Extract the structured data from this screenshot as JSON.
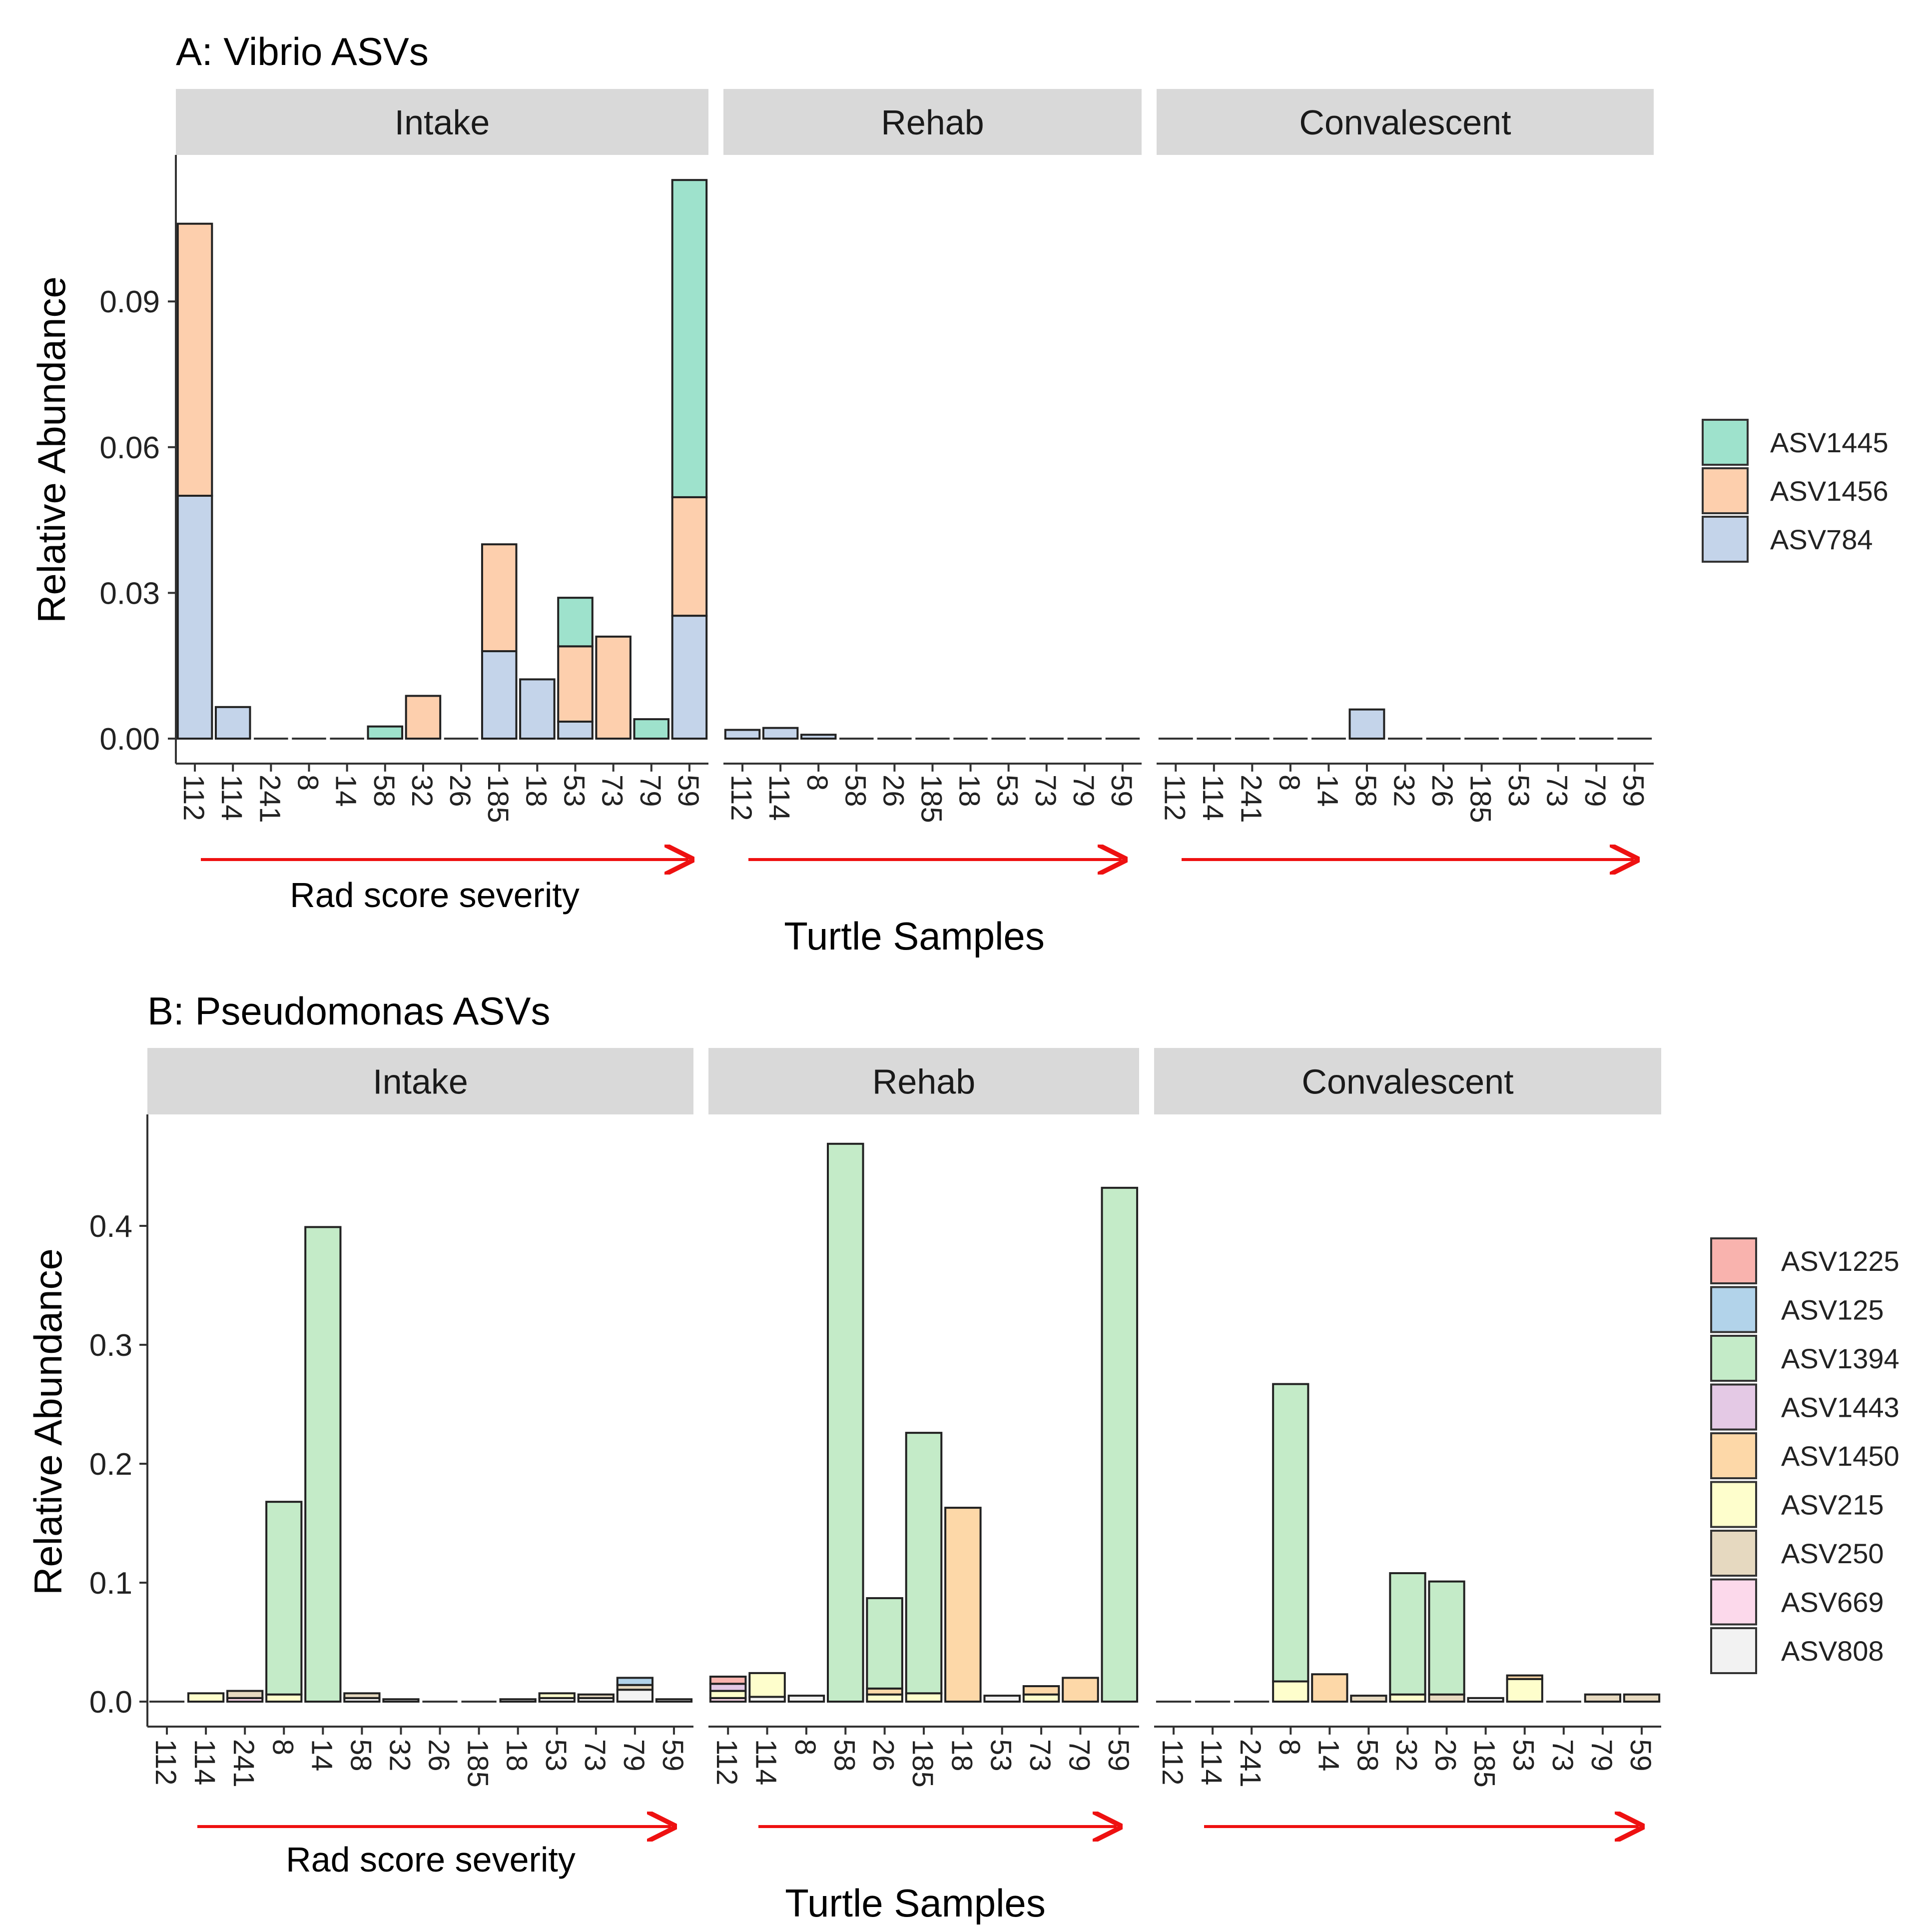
{
  "colors": {
    "ASV1445": "#9ee2cc",
    "ASV1456": "#fdcfad",
    "ASV784": "#c4d4ea",
    "ASV1225": "#f9b3ae",
    "ASV125": "#b2d3ea",
    "ASV1394": "#c4ebc8",
    "ASV1443": "#e4c9e5",
    "ASV1450": "#fdd8a8",
    "ASV215": "#fefecc",
    "ASV250": "#e6d9c0",
    "ASV669": "#fcd9eb",
    "ASV808": "#f2f2f2",
    "arrow": "#ee1111",
    "strip": "#d9d9d9"
  },
  "chart_data": [
    {
      "type": "bar",
      "stacked": true,
      "title": "A: Vibrio ASVs",
      "xlabel": "Turtle Samples",
      "ylabel": "Relative Abundance",
      "annotation": "Rad score severity",
      "ylim": [
        0,
        0.12
      ],
      "yticks": [
        0.0,
        0.03,
        0.06,
        0.09
      ],
      "ytick_labels": [
        "0.00",
        "0.03",
        "0.06",
        "0.09"
      ],
      "legend": [
        "ASV1445",
        "ASV1456",
        "ASV784"
      ],
      "facets": [
        {
          "name": "Intake",
          "categories": [
            "112",
            "114",
            "241",
            "8",
            "14",
            "58",
            "32",
            "26",
            "185",
            "18",
            "53",
            "73",
            "79",
            "59"
          ],
          "bars": [
            {
              "ASV784": 0.05,
              "ASV1456": 0.056
            },
            {
              "ASV784": 0.0065
            },
            {},
            {},
            {},
            {
              "ASV1445": 0.0025
            },
            {
              "ASV1456": 0.0088
            },
            {},
            {
              "ASV784": 0.018,
              "ASV1456": 0.022
            },
            {
              "ASV784": 0.0122
            },
            {
              "ASV784": 0.0035,
              "ASV1456": 0.0155,
              "ASV1445": 0.01
            },
            {
              "ASV1456": 0.021
            },
            {
              "ASV1445": 0.004
            },
            {
              "ASV784": 0.0253,
              "ASV1456": 0.0244,
              "ASV1445": 0.0653
            }
          ]
        },
        {
          "name": "Rehab",
          "categories": [
            "112",
            "114",
            "8",
            "58",
            "26",
            "185",
            "18",
            "53",
            "73",
            "79",
            "59"
          ],
          "bars": [
            {
              "ASV784": 0.0018
            },
            {
              "ASV784": 0.0022
            },
            {
              "ASV784": 0.0008
            },
            {},
            {},
            {},
            {},
            {},
            {},
            {},
            {}
          ]
        },
        {
          "name": "Convalescent",
          "categories": [
            "112",
            "114",
            "241",
            "8",
            "14",
            "58",
            "32",
            "26",
            "185",
            "53",
            "73",
            "79",
            "59"
          ],
          "bars": [
            {},
            {},
            {},
            {},
            {},
            {
              "ASV784": 0.006
            },
            {},
            {},
            {},
            {},
            {},
            {},
            {}
          ]
        }
      ]
    },
    {
      "type": "bar",
      "stacked": true,
      "title": "B: Pseudomonas ASVs",
      "xlabel": "Turtle Samples",
      "ylabel": "Relative Abundance",
      "annotation": "Rad score severity",
      "ylim": [
        0,
        0.49
      ],
      "yticks": [
        0.0,
        0.1,
        0.2,
        0.3,
        0.4
      ],
      "ytick_labels": [
        "0.0",
        "0.1",
        "0.2",
        "0.3",
        "0.4"
      ],
      "legend": [
        "ASV1225",
        "ASV125",
        "ASV1394",
        "ASV1443",
        "ASV1450",
        "ASV215",
        "ASV250",
        "ASV669",
        "ASV808"
      ],
      "facets": [
        {
          "name": "Intake",
          "categories": [
            "112",
            "114",
            "241",
            "8",
            "14",
            "58",
            "32",
            "26",
            "185",
            "18",
            "53",
            "73",
            "79",
            "59"
          ],
          "bars": [
            {},
            {
              "ASV215": 0.007
            },
            {
              "ASV250": 0.006,
              "ASV669": 0.003
            },
            {
              "ASV215": 0.006,
              "ASV1394": 0.162
            },
            {
              "ASV1394": 0.399
            },
            {
              "ASV250": 0.004,
              "ASV808": 0.003
            },
            {
              "ASV808": 0.002
            },
            {},
            {},
            {
              "ASV808": 0.002
            },
            {
              "ASV215": 0.004,
              "ASV808": 0.003
            },
            {
              "ASV250": 0.003,
              "ASV808": 0.003
            },
            {
              "ASV808": 0.01,
              "ASV250": 0.004,
              "ASV125": 0.006
            },
            {
              "ASV808": 0.002
            }
          ]
        },
        {
          "name": "Rehab",
          "categories": [
            "112",
            "114",
            "8",
            "58",
            "26",
            "185",
            "18",
            "53",
            "73",
            "79",
            "59"
          ],
          "bars": [
            {
              "ASV215": 0.006,
              "ASV1443": 0.006,
              "ASV1225": 0.006,
              "ASV669": 0.003
            },
            {
              "ASV808": 0.004,
              "ASV215": 0.02
            },
            {
              "ASV808": 0.005
            },
            {
              "ASV1394": 0.469
            },
            {
              "ASV215": 0.006,
              "ASV1450": 0.005,
              "ASV1394": 0.076
            },
            {
              "ASV215": 0.007,
              "ASV1394": 0.219
            },
            {
              "ASV1450": 0.163
            },
            {
              "ASV808": 0.005
            },
            {
              "ASV215": 0.006,
              "ASV1450": 0.007
            },
            {
              "ASV1450": 0.02
            },
            {
              "ASV1394": 0.432
            }
          ]
        },
        {
          "name": "Convalescent",
          "categories": [
            "112",
            "114",
            "241",
            "8",
            "14",
            "58",
            "32",
            "26",
            "185",
            "53",
            "73",
            "79",
            "59"
          ],
          "bars": [
            {},
            {},
            {},
            {
              "ASV215": 0.017,
              "ASV1394": 0.25
            },
            {
              "ASV1450": 0.023
            },
            {
              "ASV250": 0.005
            },
            {
              "ASV215": 0.006,
              "ASV1394": 0.102
            },
            {
              "ASV250": 0.006,
              "ASV1394": 0.095
            },
            {
              "ASV808": 0.003
            },
            {
              "ASV215": 0.019,
              "ASV1450": 0.003
            },
            {},
            {
              "ASV250": 0.006
            },
            {
              "ASV250": 0.006
            }
          ]
        }
      ]
    }
  ]
}
